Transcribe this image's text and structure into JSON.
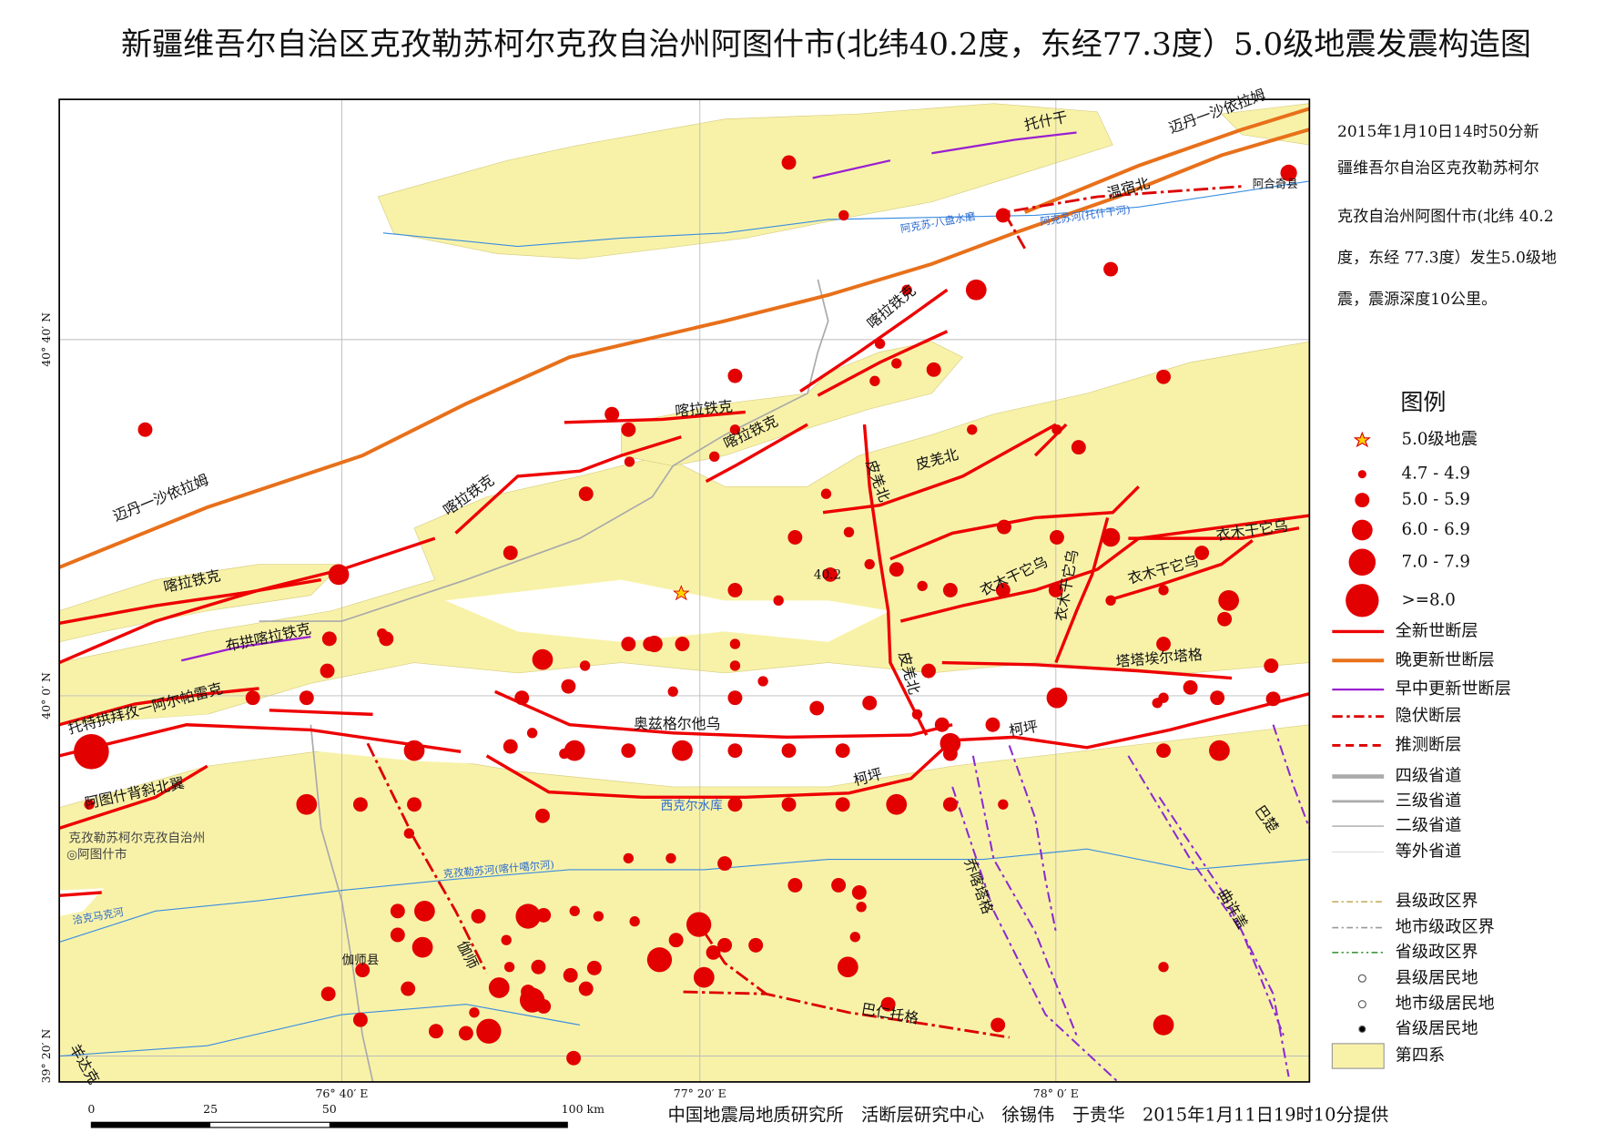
{
  "title": "新疆维吾尔自治区克孜勒苏柯尔克孜自治州阿图什市(北纬40.2度，东经77.3度）5.0级地震发震构造图",
  "description": [
    "2015年1月10日14时50分新",
    "疆维吾尔自治区克孜勒苏柯尔",
    "克孜自治州阿图什市(北纬 40.2",
    "度，东经 77.3度）发生5.0级地",
    "震，震源深度10公里。"
  ],
  "map": {
    "lat_labels": [
      "40° 40′ N",
      "40° 0′ N",
      "39° 20′ N"
    ],
    "lon_labels": [
      "76° 40′ E",
      "77° 20′ E",
      "78° 0′ E"
    ],
    "scale_labels": [
      "0",
      "25",
      "50",
      "100 km"
    ],
    "labels": [
      "托什干",
      "迈丹一沙依拉姆",
      "温宿北",
      "阿合奇县",
      "阿克苏-八盘水磨",
      "阿克苏河(托什干河)",
      "喀拉铁克",
      "喀拉铁克",
      "喀拉铁克",
      "喀拉铁克",
      "喀拉铁克",
      "皮羌北",
      "皮羌北",
      "皮羌北",
      "迈丹一沙依拉姆",
      "布拱喀拉铁克",
      "托特拱拜孜一阿尔帕雷克",
      "阿图什背斜北翼",
      "克孜勒苏柯尔克孜自治州",
      "◎阿图什市",
      "奥兹格尔他乌",
      "柯坪",
      "柯坪",
      "西克尔水库",
      "衣木干它乌",
      "衣木干它乌",
      "衣木干它乌",
      "衣木干它乌",
      "塔塔埃尔塔格",
      "40.2",
      "乔喀塔格",
      "巴楚",
      "曲许盖",
      "克孜勒苏河(喀什噶尔河)",
      "伽师",
      "伽师县",
      "巴仁托格",
      "洽克马克河",
      "羊达克"
    ]
  },
  "legend": {
    "title": "图例",
    "items": [
      "5.0级地震",
      "4.7 - 4.9",
      "5.0 - 5.9",
      "6.0 - 6.9",
      "7.0 - 7.9",
      ">=8.0",
      "全新世断层",
      "晚更新世断层",
      "早中更新世断层",
      "隐伏断层",
      "推测断层",
      "四级省道",
      "三级省道",
      "二级省道",
      "等外省道",
      "县级政区界",
      "地市级政区界",
      "省级政区界",
      "县级居民地",
      "地市级居民地",
      "省级居民地",
      "第四系"
    ]
  },
  "footer": "中国地震局地质研究所　活断层研究中心　徐锡伟　于贵华　2015年1月11日19时10分提供"
}
